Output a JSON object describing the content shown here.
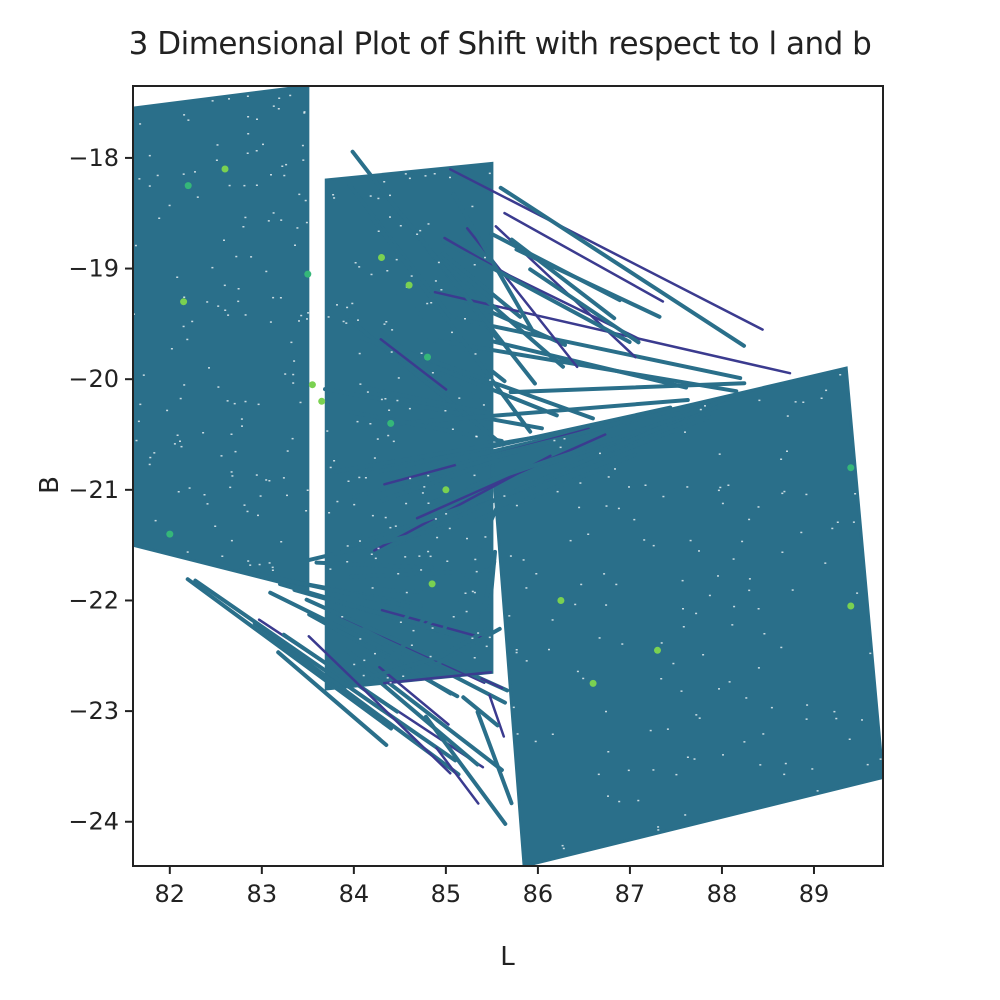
{
  "chart_data": {
    "type": "scatter",
    "title": "3 Dimensional Plot of Shift with respect to l and b",
    "xlabel": "L",
    "ylabel": "B",
    "xlim": [
      81.6,
      89.75
    ],
    "ylim": [
      -24.4,
      -17.35
    ],
    "xticks": [
      82,
      83,
      84,
      85,
      86,
      87,
      88,
      89
    ],
    "yticks": [
      -18,
      -19,
      -20,
      -21,
      -22,
      -23,
      -24
    ],
    "xtick_labels": [
      "82",
      "83",
      "84",
      "85",
      "86",
      "87",
      "88",
      "89"
    ],
    "ytick_labels": [
      "−18",
      "−19",
      "−20",
      "−21",
      "−22",
      "−23",
      "−24"
    ],
    "grid": false,
    "colormap": "viridis",
    "dominant_color": "#2a6f8a",
    "track_regions": [
      {
        "name": "",
        "corners": [
          [
            81.6,
            -17.55
          ],
          [
            83.5,
            -17.35
          ],
          [
            83.5,
            -21.9
          ],
          [
            81.6,
            -21.5
          ]
        ]
      },
      {
        "name": "",
        "corners": [
          [
            83.7,
            -18.2
          ],
          [
            85.5,
            -18.05
          ],
          [
            85.5,
            -22.65
          ],
          [
            83.7,
            -22.8
          ]
        ]
      },
      {
        "name": "",
        "corners": [
          [
            85.5,
            -20.65
          ],
          [
            89.35,
            -19.9
          ],
          [
            89.75,
            -23.6
          ],
          [
            85.85,
            -24.4
          ]
        ]
      }
    ],
    "highlight_points": [
      {
        "x": 82.2,
        "y": -18.25
      },
      {
        "x": 82.6,
        "y": -18.1
      },
      {
        "x": 82.15,
        "y": -19.3
      },
      {
        "x": 83.5,
        "y": -19.05
      },
      {
        "x": 84.3,
        "y": -18.9
      },
      {
        "x": 84.6,
        "y": -19.15
      },
      {
        "x": 84.8,
        "y": -19.8
      },
      {
        "x": 83.55,
        "y": -20.05
      },
      {
        "x": 83.65,
        "y": -20.2
      },
      {
        "x": 84.4,
        "y": -20.4
      },
      {
        "x": 85.0,
        "y": -21.0
      },
      {
        "x": 84.85,
        "y": -21.85
      },
      {
        "x": 82.0,
        "y": -21.4
      },
      {
        "x": 86.25,
        "y": -22.0
      },
      {
        "x": 86.6,
        "y": -22.75
      },
      {
        "x": 89.4,
        "y": -20.8
      },
      {
        "x": 89.4,
        "y": -22.05
      },
      {
        "x": 87.3,
        "y": -22.45
      }
    ]
  }
}
